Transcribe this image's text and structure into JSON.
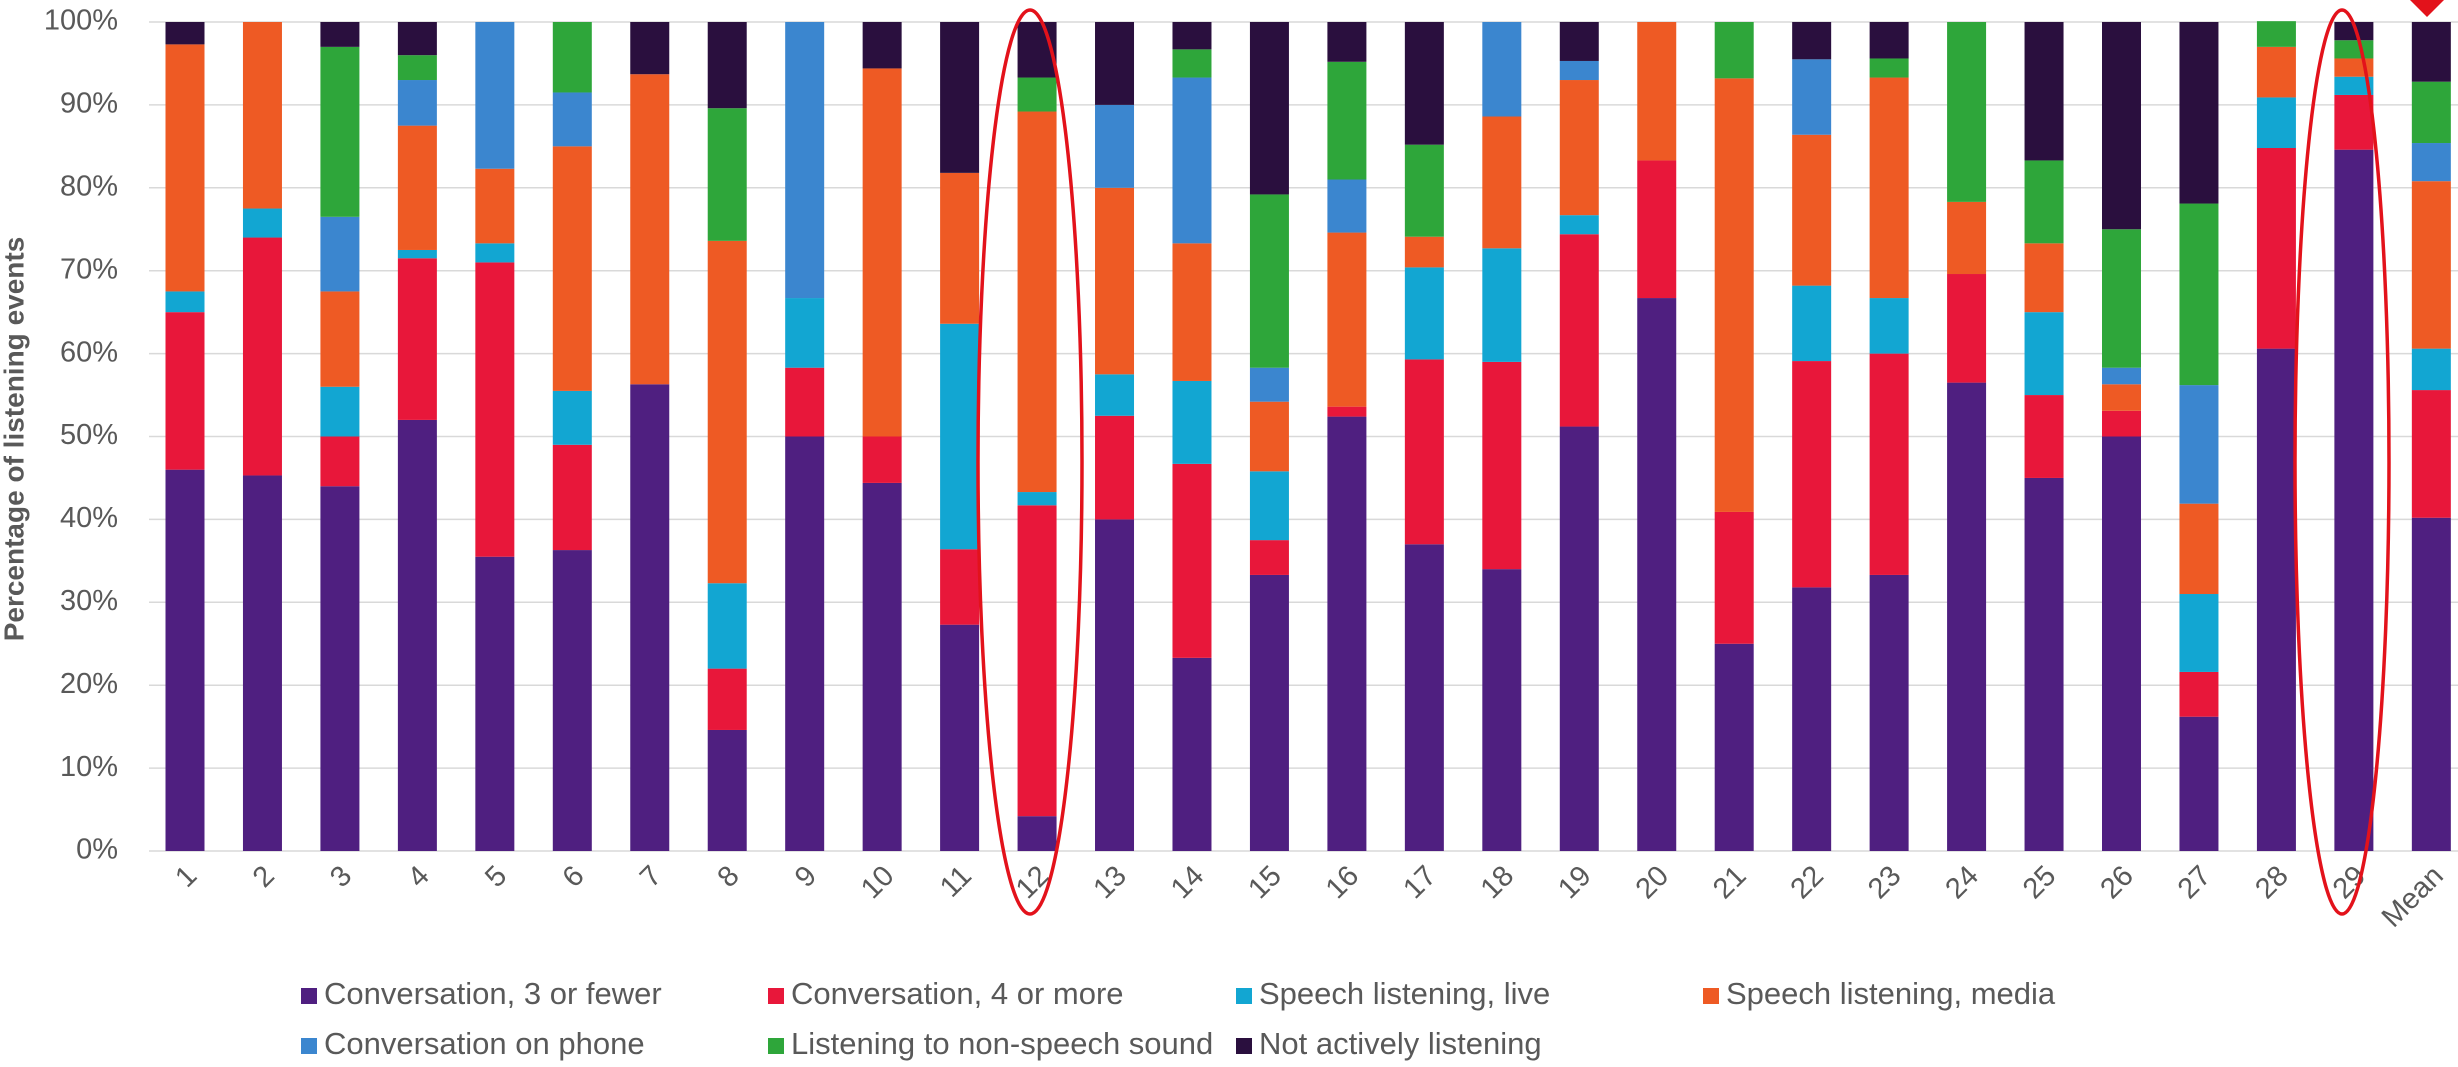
{
  "chart_data": {
    "type": "stacked_bar",
    "y_label": "Percentage of listening events",
    "categories": [
      "1",
      "2",
      "3",
      "4",
      "5",
      "6",
      "7",
      "8",
      "9",
      "10",
      "11",
      "12",
      "13",
      "14",
      "15",
      "16",
      "17",
      "18",
      "19",
      "20",
      "21",
      "22",
      "23",
      "24",
      "25",
      "26",
      "27",
      "28",
      "29",
      "Mean"
    ],
    "series": [
      {
        "name": "Conversation, 3 or fewer",
        "color": "#4f1f80",
        "values": [
          46,
          45.3,
          44,
          52,
          35.5,
          36.3,
          56.3,
          14.6,
          50,
          44.4,
          27.3,
          4.2,
          40,
          23.3,
          33.3,
          52.4,
          37,
          34,
          51.2,
          66.7,
          25,
          31.8,
          33.3,
          56.5,
          45,
          50,
          16.2,
          60.6,
          84.6,
          40.2
        ]
      },
      {
        "name": "Conversation, 4 or more",
        "color": "#e8173a",
        "values": [
          19,
          28.7,
          6,
          19.5,
          35.5,
          12.7,
          0,
          7.4,
          8.3,
          5.6,
          9.1,
          37.5,
          12.5,
          23.4,
          4.2,
          1.2,
          22.3,
          25,
          23.2,
          16.6,
          15.9,
          27.3,
          26.7,
          13.1,
          10,
          3.1,
          5.4,
          24.2,
          6.6,
          15.4
        ]
      },
      {
        "name": "Speech listening, live",
        "color": "#12a6d2",
        "values": [
          2.5,
          3.5,
          6,
          1,
          2.3,
          6.5,
          0,
          10.3,
          8.4,
          0,
          27.2,
          1.6,
          5,
          10,
          8.3,
          0,
          11.1,
          13.7,
          2.3,
          0,
          0,
          9.1,
          6.7,
          0,
          10,
          0,
          9.4,
          6.1,
          2.2,
          5
        ]
      },
      {
        "name": "Speech listening, media",
        "color": "#ee5a24",
        "values": [
          29.8,
          22.5,
          11.5,
          15,
          9,
          29.5,
          37.4,
          41.3,
          0,
          44.4,
          18.2,
          45.9,
          22.5,
          16.6,
          8.4,
          21,
          3.7,
          15.9,
          16.3,
          16.7,
          52.3,
          18.2,
          26.6,
          8.7,
          8.3,
          3.2,
          10.9,
          6.1,
          2.2,
          20.2
        ]
      },
      {
        "name": "Conversation on phone",
        "color": "#3b86cf",
        "values": [
          0,
          0,
          9,
          5.5,
          17.7,
          6.5,
          0,
          0,
          33.3,
          0,
          0,
          0,
          10,
          20,
          4.1,
          6.4,
          0,
          11.4,
          2.3,
          0,
          0,
          9.1,
          0,
          0,
          0,
          2,
          14.3,
          0,
          0,
          4.6
        ]
      },
      {
        "name": "Listening to non-speech sound",
        "color": "#2ea63a",
        "values": [
          0,
          0,
          20.5,
          3,
          0,
          8.5,
          0,
          16,
          0,
          0,
          0,
          4.1,
          0,
          3.4,
          20.9,
          14.2,
          11.1,
          0,
          0,
          0,
          6.8,
          0,
          2.3,
          21.7,
          10,
          16.7,
          21.9,
          3.1,
          2.2,
          7.4
        ]
      },
      {
        "name": "Not actively listening",
        "color": "#2a0f3e",
        "values": [
          2.7,
          0,
          3,
          4,
          0,
          0,
          6.3,
          10.4,
          0,
          5.6,
          18.2,
          6.7,
          10,
          3.3,
          20.8,
          4.8,
          14.8,
          0,
          4.7,
          0,
          0,
          4.5,
          4.4,
          0,
          16.7,
          25,
          21.9,
          0,
          2.2,
          7.2
        ]
      }
    ],
    "ylim": [
      0,
      100
    ],
    "yticks": [
      {
        "value": 0,
        "label": "0%"
      },
      {
        "value": 10,
        "label": "10%"
      },
      {
        "value": 20,
        "label": "20%"
      },
      {
        "value": 30,
        "label": "30%"
      },
      {
        "value": 40,
        "label": "40%"
      },
      {
        "value": 50,
        "label": "50%"
      },
      {
        "value": 60,
        "label": "60%"
      },
      {
        "value": 70,
        "label": "70%"
      },
      {
        "value": 80,
        "label": "80%"
      },
      {
        "value": 90,
        "label": "90%"
      },
      {
        "value": 100,
        "label": "100%"
      }
    ],
    "grid": true
  }
}
